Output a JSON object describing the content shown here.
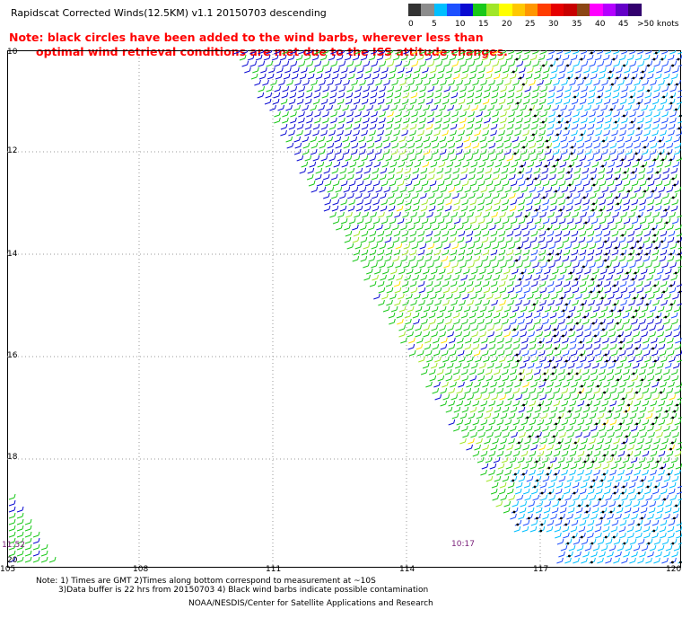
{
  "title": "Rapidscat Corrected Winds(12.5KM) v1.1 20150703 descending",
  "note_lines": [
    "Note: black circles have been added to the wind barbs, wherever less than",
    "optimal wind retrieval conditions are met due to the ISS attitude changes."
  ],
  "legend": {
    "unit": ">50 knots",
    "ticks": [
      "0",
      "5",
      "10",
      "15",
      "20",
      "25",
      "30",
      "35",
      "40",
      "45"
    ],
    "colors": [
      "#333333",
      "#8c8c8c",
      "#00bfff",
      "#1e50ff",
      "#0a0ad2",
      "#19c819",
      "#a0e628",
      "#ffff00",
      "#ffc800",
      "#ff9600",
      "#ff3c00",
      "#e60000",
      "#c80000",
      "#8b4513",
      "#ff00ff",
      "#b400ff",
      "#6400c8",
      "#32006e"
    ]
  },
  "axes": {
    "lat_labels": [
      "10",
      "12",
      "14",
      "16",
      "18",
      "20"
    ],
    "lon_labels": [
      "105",
      "108",
      "111",
      "114",
      "117",
      "120"
    ]
  },
  "time_labels": [
    "11:52",
    "10:17"
  ],
  "footer": {
    "line1": "Note: 1) Times are GMT 2)Times along bottom correspond to measurement at ~10S",
    "line2": "3)Data buffer is 22 hrs from 20150703 4) Black wind barbs indicate possible contamination",
    "line3": "NOAA/NESDIS/Center for Satellite Applications and Research"
  }
}
